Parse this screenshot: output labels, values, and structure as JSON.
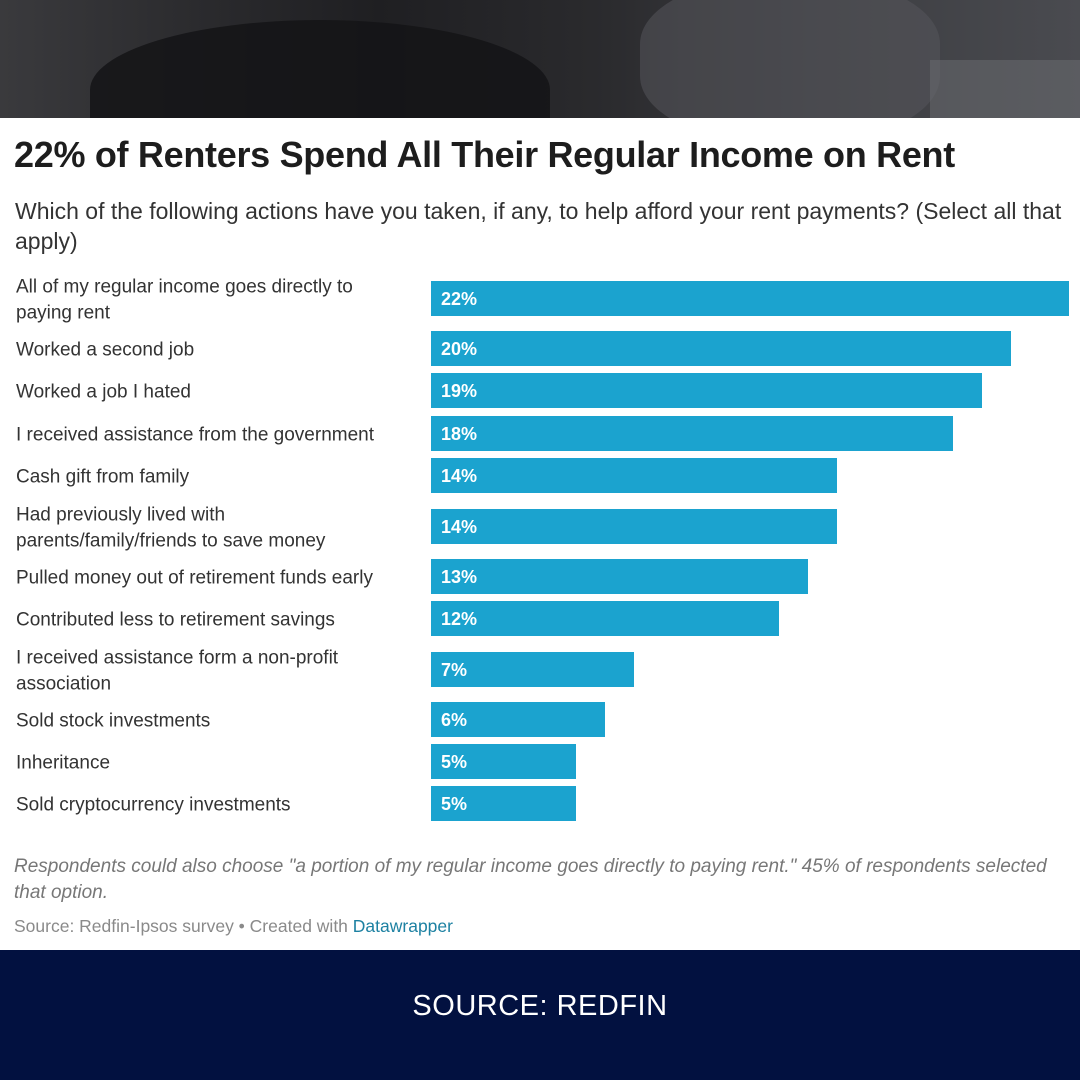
{
  "chart_data": {
    "type": "bar",
    "orientation": "horizontal",
    "title": "22% of Renters Spend All Their Regular Income on Rent",
    "subtitle": "Which of the following actions have you taken, if any, to help afford your rent payments? (Select all that apply)",
    "categories": [
      [
        "All of my regular income goes directly to",
        "paying rent"
      ],
      [
        "Worked a second job"
      ],
      [
        "Worked a job I hated"
      ],
      [
        "I received assistance from the government"
      ],
      [
        "Cash gift from family"
      ],
      [
        "Had previously lived with",
        "parents/family/friends to save money"
      ],
      [
        "Pulled money out of retirement funds early"
      ],
      [
        "Contributed less to retirement savings"
      ],
      [
        "I received assistance form a non-profit",
        "association"
      ],
      [
        "Sold stock investments"
      ],
      [
        "Inheritance"
      ],
      [
        "Sold cryptocurrency investments"
      ]
    ],
    "values": [
      22,
      20,
      19,
      18,
      14,
      14,
      13,
      12,
      7,
      6,
      5,
      5
    ],
    "value_labels": [
      "22%",
      "20%",
      "19%",
      "18%",
      "14%",
      "14%",
      "13%",
      "12%",
      "7%",
      "6%",
      "5%",
      "5%"
    ],
    "unit": "%",
    "xlim": [
      0,
      22
    ],
    "bar_color": "#1ba3cf",
    "note": "Respondents could also choose \"a portion of my regular income goes directly to paying rent.\" 45% of respondents selected that option.",
    "source_prefix": "Source: Redfin-Ipsos survey • Created with ",
    "source_link": "Datawrapper"
  },
  "footer": {
    "text": "SOURCE: REDFIN"
  }
}
